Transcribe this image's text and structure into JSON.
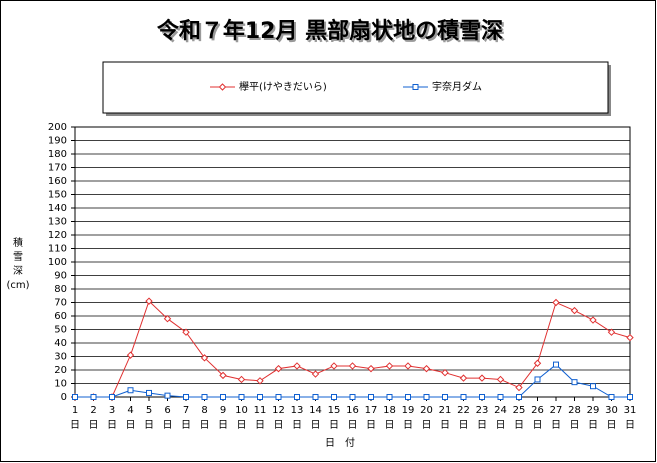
{
  "chart_data": {
    "type": "line",
    "title": "令和７年12月 黒部扇状地の積雪深",
    "y_label_chars": [
      "積",
      "雪",
      "深"
    ],
    "y_unit": "(cm)",
    "x_label": "日　付",
    "x_tick_suffix": "日",
    "categories": [
      "1",
      "2",
      "3",
      "4",
      "5",
      "6",
      "7",
      "8",
      "9",
      "10",
      "11",
      "12",
      "13",
      "14",
      "15",
      "16",
      "17",
      "18",
      "19",
      "20",
      "21",
      "22",
      "23",
      "24",
      "25",
      "26",
      "27",
      "28",
      "29",
      "30",
      "31"
    ],
    "series": [
      {
        "name": "欅平(けやきだいら)",
        "color": "#e03030",
        "marker": "diamond",
        "values": [
          0,
          0,
          0,
          31,
          71,
          58,
          48,
          29,
          16,
          13,
          12,
          21,
          23,
          17,
          23,
          23,
          21,
          23,
          23,
          21,
          18,
          14,
          14,
          13,
          7,
          25,
          70,
          64,
          57,
          48,
          44
        ]
      },
      {
        "name": "宇奈月ダム",
        "color": "#1060d0",
        "marker": "square",
        "values": [
          0,
          0,
          0,
          5,
          3,
          1,
          0,
          0,
          0,
          0,
          0,
          0,
          0,
          0,
          0,
          0,
          0,
          0,
          0,
          0,
          0,
          0,
          0,
          0,
          0,
          13,
          24,
          11,
          8,
          0,
          0
        ]
      }
    ],
    "ylim": [
      0,
      200
    ],
    "yticks": [
      0,
      10,
      20,
      30,
      40,
      50,
      60,
      70,
      80,
      90,
      100,
      110,
      120,
      130,
      140,
      150,
      160,
      170,
      180,
      190,
      200
    ],
    "grid": true
  }
}
